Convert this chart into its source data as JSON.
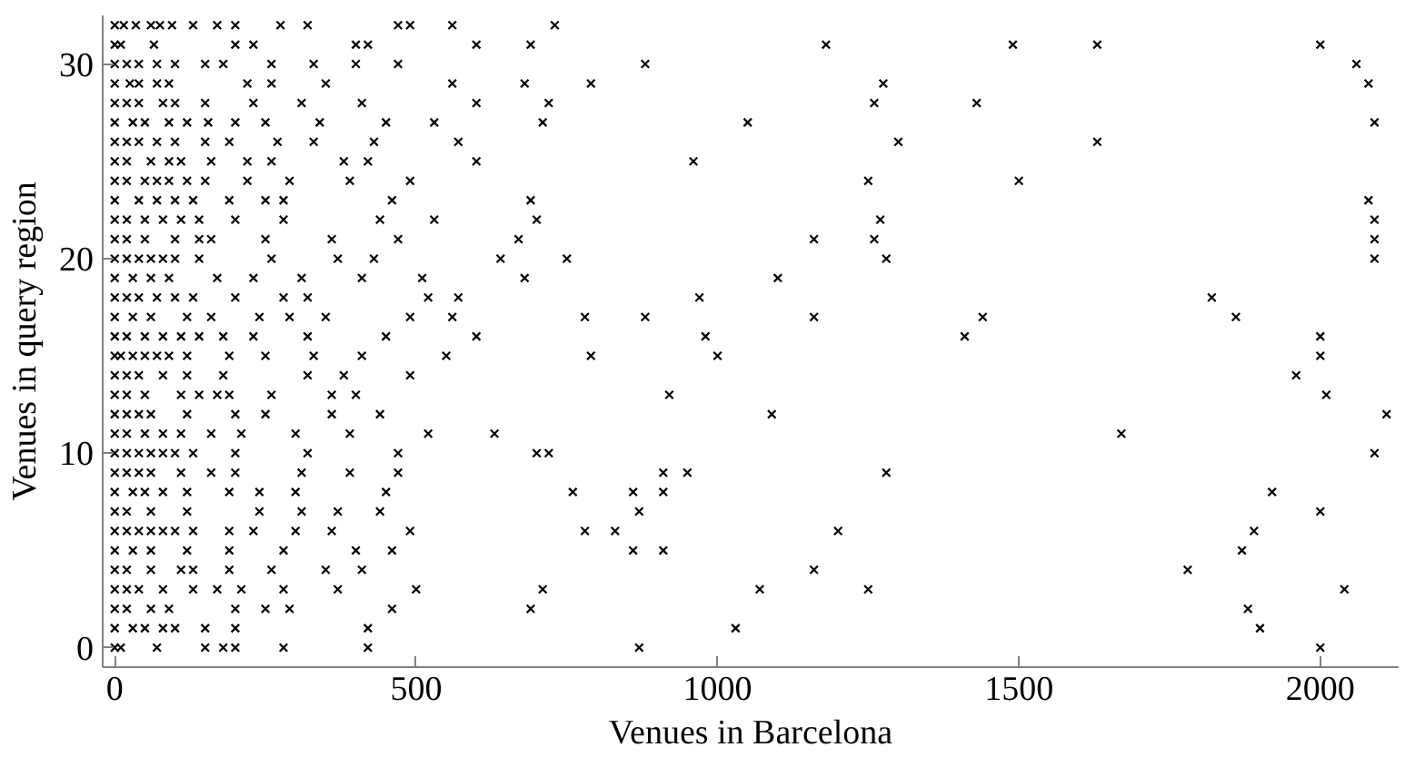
{
  "chart_data": {
    "type": "scatter",
    "xlabel": "Venues in Barcelona",
    "ylabel": "Venues in query region",
    "xlim": [
      -20,
      2130
    ],
    "ylim": [
      -1,
      32.5
    ],
    "xticks": [
      0,
      500,
      1000,
      1500,
      2000
    ],
    "yticks": [
      0,
      10,
      20,
      30
    ],
    "marker": "cross",
    "grid": false,
    "series": [
      {
        "color": "#000000",
        "x": [
          0,
          15,
          35,
          60,
          75,
          95,
          130,
          170,
          200,
          275,
          320,
          470,
          490,
          560,
          730
        ],
        "values": [
          32,
          32,
          32,
          32,
          32,
          32,
          32,
          32,
          32,
          32,
          32,
          32,
          32,
          32,
          32
        ]
      },
      {
        "color": "#000000",
        "x": [
          0,
          10,
          65,
          200,
          230,
          400,
          420,
          600,
          690,
          1180,
          1490,
          1630,
          2000
        ],
        "values": [
          31,
          31,
          31,
          31,
          31,
          31,
          31,
          31,
          31,
          31,
          31,
          31,
          31
        ]
      },
      {
        "color": "#000000",
        "x": [
          0,
          20,
          40,
          70,
          100,
          150,
          180,
          260,
          330,
          400,
          470,
          880,
          2060
        ],
        "values": [
          30,
          30,
          30,
          30,
          30,
          30,
          30,
          30,
          30,
          30,
          30,
          30,
          30
        ]
      },
      {
        "color": "#000000",
        "x": [
          0,
          25,
          40,
          70,
          90,
          220,
          260,
          350,
          560,
          680,
          790,
          1275,
          2080
        ],
        "values": [
          29,
          29,
          29,
          29,
          29,
          29,
          29,
          29,
          29,
          29,
          29,
          29,
          29
        ]
      },
      {
        "color": "#000000",
        "x": [
          0,
          20,
          40,
          80,
          100,
          150,
          230,
          310,
          410,
          600,
          720,
          1260,
          1430
        ],
        "values": [
          28,
          28,
          28,
          28,
          28,
          28,
          28,
          28,
          28,
          28,
          28,
          28,
          28
        ]
      },
      {
        "color": "#000000",
        "x": [
          0,
          30,
          50,
          90,
          120,
          155,
          200,
          250,
          340,
          450,
          530,
          710,
          1050,
          2090
        ],
        "values": [
          27,
          27,
          27,
          27,
          27,
          27,
          27,
          27,
          27,
          27,
          27,
          27,
          27,
          27
        ]
      },
      {
        "color": "#000000",
        "x": [
          0,
          20,
          40,
          70,
          100,
          150,
          190,
          270,
          330,
          430,
          570,
          1300,
          1630
        ],
        "values": [
          26,
          26,
          26,
          26,
          26,
          26,
          26,
          26,
          26,
          26,
          26,
          26,
          26
        ]
      },
      {
        "color": "#000000",
        "x": [
          0,
          20,
          60,
          90,
          110,
          160,
          220,
          260,
          380,
          420,
          600,
          960
        ],
        "values": [
          25,
          25,
          25,
          25,
          25,
          25,
          25,
          25,
          25,
          25,
          25,
          25
        ]
      },
      {
        "color": "#000000",
        "x": [
          0,
          20,
          50,
          70,
          90,
          120,
          150,
          220,
          290,
          390,
          490,
          1250,
          1500
        ],
        "values": [
          24,
          24,
          24,
          24,
          24,
          24,
          24,
          24,
          24,
          24,
          24,
          24,
          24
        ]
      },
      {
        "color": "#000000",
        "x": [
          0,
          40,
          70,
          100,
          130,
          190,
          250,
          280,
          460,
          690,
          2080
        ],
        "values": [
          23,
          23,
          23,
          23,
          23,
          23,
          23,
          23,
          23,
          23,
          23
        ]
      },
      {
        "color": "#000000",
        "x": [
          0,
          20,
          50,
          80,
          110,
          140,
          200,
          280,
          440,
          530,
          700,
          1270,
          2090
        ],
        "values": [
          22,
          22,
          22,
          22,
          22,
          22,
          22,
          22,
          22,
          22,
          22,
          22,
          22
        ]
      },
      {
        "color": "#000000",
        "x": [
          0,
          20,
          50,
          100,
          140,
          160,
          250,
          360,
          470,
          670,
          1160,
          1260,
          2090
        ],
        "values": [
          21,
          21,
          21,
          21,
          21,
          21,
          21,
          21,
          21,
          21,
          21,
          21,
          21
        ]
      },
      {
        "color": "#000000",
        "x": [
          0,
          20,
          40,
          60,
          80,
          100,
          140,
          260,
          370,
          430,
          640,
          750,
          1280,
          2090
        ],
        "values": [
          20,
          20,
          20,
          20,
          20,
          20,
          20,
          20,
          20,
          20,
          20,
          20,
          20,
          20
        ]
      },
      {
        "color": "#000000",
        "x": [
          0,
          30,
          60,
          90,
          170,
          230,
          310,
          410,
          510,
          680,
          1100
        ],
        "values": [
          19,
          19,
          19,
          19,
          19,
          19,
          19,
          19,
          19,
          19,
          19
        ]
      },
      {
        "color": "#000000",
        "x": [
          0,
          20,
          40,
          70,
          100,
          130,
          200,
          280,
          320,
          520,
          570,
          970,
          1820
        ],
        "values": [
          18,
          18,
          18,
          18,
          18,
          18,
          18,
          18,
          18,
          18,
          18,
          18,
          18
        ]
      },
      {
        "color": "#000000",
        "x": [
          0,
          30,
          60,
          120,
          160,
          240,
          290,
          350,
          490,
          560,
          780,
          880,
          1160,
          1440,
          1860
        ],
        "values": [
          17,
          17,
          17,
          17,
          17,
          17,
          17,
          17,
          17,
          17,
          17,
          17,
          17,
          17,
          17
        ]
      },
      {
        "color": "#000000",
        "x": [
          0,
          20,
          50,
          80,
          110,
          140,
          180,
          230,
          320,
          450,
          600,
          980,
          1410,
          2000
        ],
        "values": [
          16,
          16,
          16,
          16,
          16,
          16,
          16,
          16,
          16,
          16,
          16,
          16,
          16,
          16
        ]
      },
      {
        "color": "#000000",
        "x": [
          0,
          10,
          30,
          50,
          70,
          90,
          120,
          190,
          250,
          330,
          410,
          550,
          790,
          1000,
          2000
        ],
        "values": [
          15,
          15,
          15,
          15,
          15,
          15,
          15,
          15,
          15,
          15,
          15,
          15,
          15,
          15,
          15
        ]
      },
      {
        "color": "#000000",
        "x": [
          0,
          20,
          40,
          80,
          120,
          180,
          320,
          380,
          490,
          1960
        ],
        "values": [
          14,
          14,
          14,
          14,
          14,
          14,
          14,
          14,
          14,
          14
        ]
      },
      {
        "color": "#000000",
        "x": [
          0,
          20,
          50,
          110,
          140,
          170,
          190,
          260,
          360,
          400,
          920,
          2010
        ],
        "values": [
          13,
          13,
          13,
          13,
          13,
          13,
          13,
          13,
          13,
          13,
          13,
          13
        ]
      },
      {
        "color": "#000000",
        "x": [
          0,
          20,
          40,
          60,
          120,
          200,
          250,
          360,
          440,
          1090,
          2110
        ],
        "values": [
          12,
          12,
          12,
          12,
          12,
          12,
          12,
          12,
          12,
          12,
          12
        ]
      },
      {
        "color": "#000000",
        "x": [
          0,
          20,
          50,
          80,
          110,
          160,
          210,
          300,
          390,
          520,
          630,
          1670
        ],
        "values": [
          11,
          11,
          11,
          11,
          11,
          11,
          11,
          11,
          11,
          11,
          11,
          11
        ]
      },
      {
        "color": "#000000",
        "x": [
          0,
          20,
          40,
          60,
          80,
          100,
          130,
          200,
          320,
          470,
          700,
          720,
          2090
        ],
        "values": [
          10,
          10,
          10,
          10,
          10,
          10,
          10,
          10,
          10,
          10,
          10,
          10,
          10
        ]
      },
      {
        "color": "#000000",
        "x": [
          0,
          20,
          40,
          60,
          110,
          160,
          200,
          310,
          390,
          470,
          910,
          950,
          1280
        ],
        "values": [
          9,
          9,
          9,
          9,
          9,
          9,
          9,
          9,
          9,
          9,
          9,
          9,
          9
        ]
      },
      {
        "color": "#000000",
        "x": [
          0,
          30,
          50,
          80,
          120,
          190,
          240,
          300,
          450,
          760,
          860,
          910,
          1920
        ],
        "values": [
          8,
          8,
          8,
          8,
          8,
          8,
          8,
          8,
          8,
          8,
          8,
          8,
          8
        ]
      },
      {
        "color": "#000000",
        "x": [
          0,
          20,
          60,
          120,
          240,
          310,
          370,
          440,
          870,
          2000
        ],
        "values": [
          7,
          7,
          7,
          7,
          7,
          7,
          7,
          7,
          7,
          7
        ]
      },
      {
        "color": "#000000",
        "x": [
          0,
          20,
          40,
          60,
          80,
          100,
          130,
          190,
          230,
          300,
          360,
          490,
          780,
          830,
          1200,
          1890
        ],
        "values": [
          6,
          6,
          6,
          6,
          6,
          6,
          6,
          6,
          6,
          6,
          6,
          6,
          6,
          6,
          6,
          6
        ]
      },
      {
        "color": "#000000",
        "x": [
          0,
          30,
          60,
          120,
          190,
          280,
          400,
          460,
          860,
          910,
          1870
        ],
        "values": [
          5,
          5,
          5,
          5,
          5,
          5,
          5,
          5,
          5,
          5,
          5
        ]
      },
      {
        "color": "#000000",
        "x": [
          0,
          20,
          60,
          110,
          130,
          190,
          260,
          350,
          410,
          1160,
          1780
        ],
        "values": [
          4,
          4,
          4,
          4,
          4,
          4,
          4,
          4,
          4,
          4,
          4
        ]
      },
      {
        "color": "#000000",
        "x": [
          0,
          20,
          40,
          80,
          130,
          170,
          210,
          280,
          370,
          500,
          710,
          1070,
          1250,
          2040
        ],
        "values": [
          3,
          3,
          3,
          3,
          3,
          3,
          3,
          3,
          3,
          3,
          3,
          3,
          3,
          3
        ]
      },
      {
        "color": "#000000",
        "x": [
          0,
          20,
          60,
          90,
          200,
          250,
          290,
          460,
          690,
          1880
        ],
        "values": [
          2,
          2,
          2,
          2,
          2,
          2,
          2,
          2,
          2,
          2
        ]
      },
      {
        "color": "#000000",
        "x": [
          0,
          30,
          50,
          80,
          100,
          150,
          200,
          420,
          1030,
          1900
        ],
        "values": [
          1,
          1,
          1,
          1,
          1,
          1,
          1,
          1,
          1,
          1
        ]
      },
      {
        "color": "#000000",
        "x": [
          0,
          10,
          70,
          150,
          180,
          200,
          280,
          420,
          870,
          2000
        ],
        "values": [
          0,
          0,
          0,
          0,
          0,
          0,
          0,
          0,
          0,
          0
        ]
      }
    ]
  }
}
